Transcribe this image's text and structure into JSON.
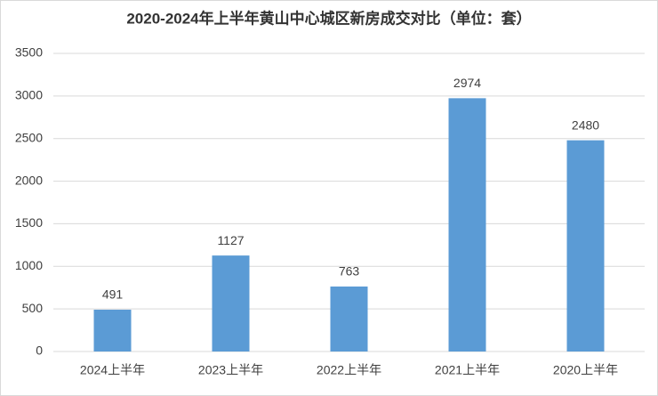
{
  "chart_data": {
    "type": "bar",
    "title": "2020-2024年上半年黄山中心城区新房成交对比（单位：套）",
    "categories": [
      "2024上半年",
      "2023上半年",
      "2022上半年",
      "2021上半年",
      "2020上半年"
    ],
    "values": [
      491,
      1127,
      763,
      2974,
      2480
    ],
    "color": "#5b9bd5",
    "ylim": [
      0,
      3500
    ],
    "yticks": [
      0,
      500,
      1000,
      1500,
      2000,
      2500,
      3000,
      3500
    ],
    "grid": true,
    "data_labels": true
  }
}
